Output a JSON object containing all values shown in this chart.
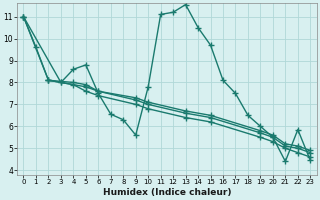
{
  "background_color": "#d8f0f0",
  "grid_color": "#b0d8d8",
  "line_color": "#1a7a6e",
  "line_width": 1.0,
  "marker": "+",
  "marker_size": 4,
  "marker_edge_width": 1.0,
  "xlabel": "Humidex (Indice chaleur)",
  "xlim": [
    -0.5,
    23.5
  ],
  "ylim": [
    3.8,
    11.6
  ],
  "yticks": [
    4,
    5,
    6,
    7,
    8,
    9,
    10,
    11
  ],
  "xticks": [
    0,
    1,
    2,
    3,
    4,
    5,
    6,
    7,
    8,
    9,
    10,
    11,
    12,
    13,
    14,
    15,
    16,
    17,
    18,
    19,
    20,
    21,
    22,
    23
  ],
  "series1": {
    "x": [
      0,
      1,
      2,
      3,
      4,
      5,
      6,
      7,
      8,
      9,
      10,
      11,
      12,
      13,
      14,
      15,
      16,
      17,
      18,
      19,
      20,
      21,
      22,
      23
    ],
    "y": [
      11.0,
      9.6,
      8.1,
      8.0,
      8.6,
      8.8,
      7.5,
      6.55,
      6.3,
      5.6,
      7.8,
      11.1,
      11.2,
      11.55,
      10.5,
      9.7,
      8.1,
      7.5,
      6.5,
      6.0,
      5.5,
      4.4,
      5.85,
      4.45
    ]
  },
  "series2": {
    "x": [
      0,
      2,
      4,
      5,
      6,
      9,
      10,
      13,
      15,
      19,
      20,
      21,
      22,
      23
    ],
    "y": [
      11.0,
      8.1,
      8.0,
      7.9,
      7.6,
      7.3,
      7.1,
      6.7,
      6.5,
      5.8,
      5.6,
      5.2,
      5.1,
      4.9
    ]
  },
  "series3": {
    "x": [
      0,
      3,
      5,
      6,
      9,
      10,
      13,
      15,
      19,
      20,
      21,
      22,
      23
    ],
    "y": [
      11.0,
      8.0,
      7.8,
      7.6,
      7.2,
      7.0,
      6.6,
      6.4,
      5.7,
      5.5,
      5.1,
      5.0,
      4.8
    ]
  },
  "series4": {
    "x": [
      2,
      4,
      5,
      6,
      9,
      10,
      13,
      15,
      19,
      20,
      21,
      22,
      23
    ],
    "y": [
      8.1,
      7.9,
      7.6,
      7.4,
      7.0,
      6.8,
      6.4,
      6.2,
      5.5,
      5.3,
      5.0,
      4.8,
      4.6
    ]
  }
}
